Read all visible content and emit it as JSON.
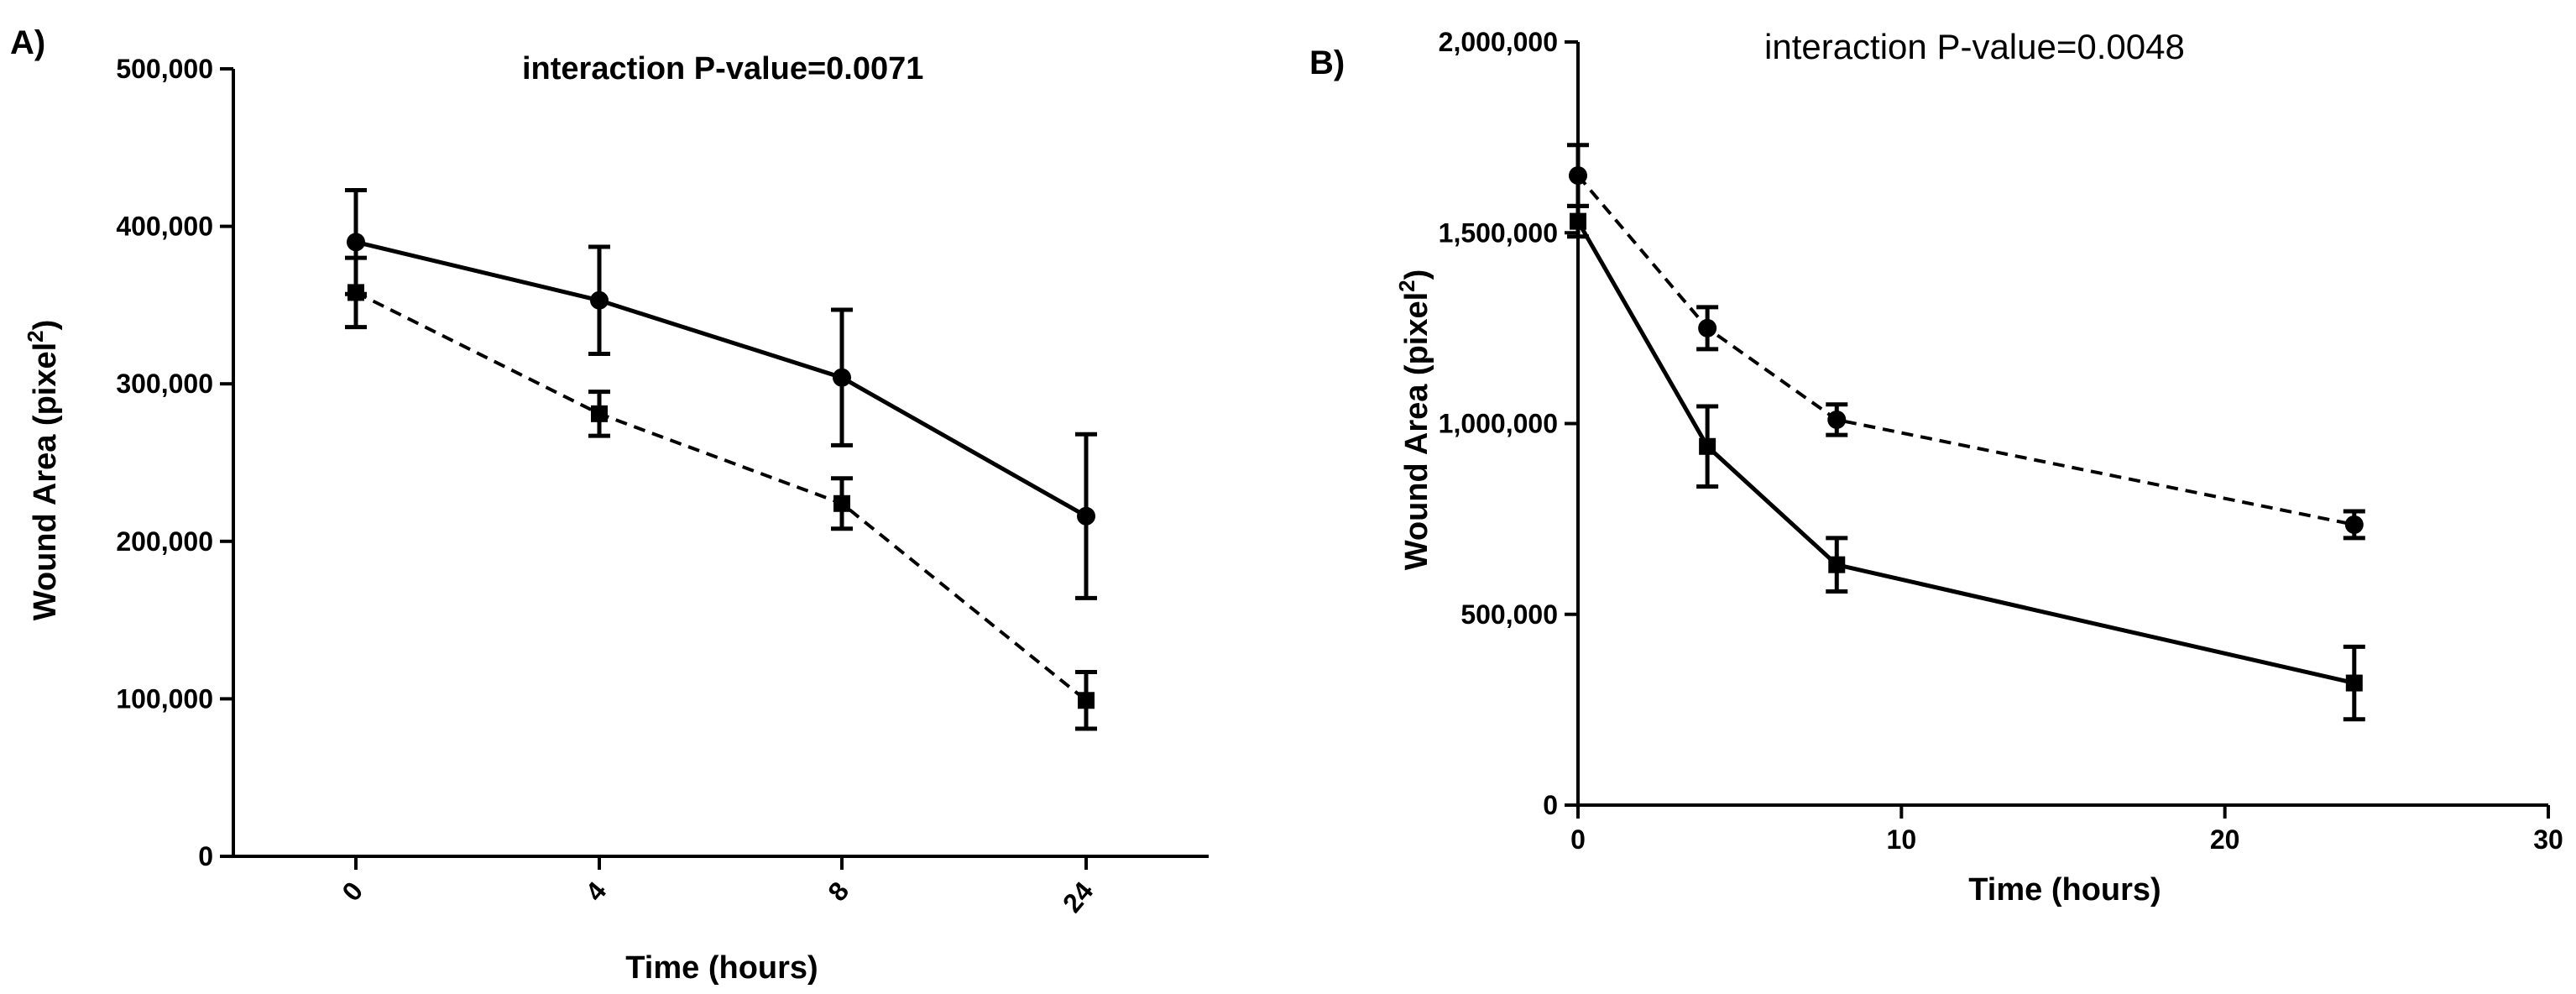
{
  "colors": {
    "ink": "#000000",
    "background": "#ffffff"
  },
  "chart_data": [
    {
      "type": "line",
      "panel": "A)",
      "title": "interaction P-value=0.0071",
      "xlabel": "Time (hours)",
      "ylabel": "Wound Area (pixel",
      "ylabel_sup": "2",
      "ylabel_close": ")",
      "x_scale": "categorical",
      "categories": [
        "0",
        "4",
        "8",
        "24"
      ],
      "ylim": [
        0,
        500000
      ],
      "yticks": [
        0,
        100000,
        200000,
        300000,
        400000,
        500000
      ],
      "ytick_labels": [
        "0",
        "100,000",
        "200,000",
        "300,000",
        "400,000",
        "500,000"
      ],
      "series": [
        {
          "name": "circle-solid",
          "marker": "circle",
          "line": "solid",
          "values": [
            390000,
            353000,
            304000,
            216000
          ],
          "errors": [
            33000,
            34000,
            43000,
            52000
          ]
        },
        {
          "name": "square-dashed",
          "marker": "square",
          "line": "dashed",
          "values": [
            358000,
            281000,
            224000,
            99000
          ],
          "errors": [
            22000,
            14000,
            16000,
            18000
          ]
        }
      ]
    },
    {
      "type": "line",
      "panel": "B)",
      "title": "interaction P-value=0.0048",
      "xlabel": "Time (hours)",
      "ylabel": "Wound Area (pixel",
      "ylabel_sup": "2",
      "ylabel_close": ")",
      "x_scale": "linear",
      "xlim": [
        0,
        30
      ],
      "xticks": [
        0,
        10,
        20,
        30
      ],
      "xtick_labels": [
        "0",
        "10",
        "20",
        "30"
      ],
      "ylim": [
        0,
        2000000
      ],
      "yticks": [
        0,
        500000,
        1000000,
        1500000,
        2000000
      ],
      "ytick_labels": [
        "0",
        "500,000",
        "1,000,000",
        "1,500,000",
        "2,000,000"
      ],
      "series": [
        {
          "name": "circle-dashed",
          "marker": "circle",
          "line": "dashed",
          "x": [
            0,
            4,
            8,
            24
          ],
          "values": [
            1650000,
            1250000,
            1010000,
            735000
          ],
          "errors": [
            80000,
            55000,
            40000,
            35000
          ]
        },
        {
          "name": "square-solid",
          "marker": "square",
          "line": "solid",
          "x": [
            0,
            4,
            8,
            24
          ],
          "values": [
            1530000,
            940000,
            630000,
            320000
          ],
          "errors": [
            40000,
            105000,
            70000,
            95000
          ]
        }
      ]
    }
  ]
}
